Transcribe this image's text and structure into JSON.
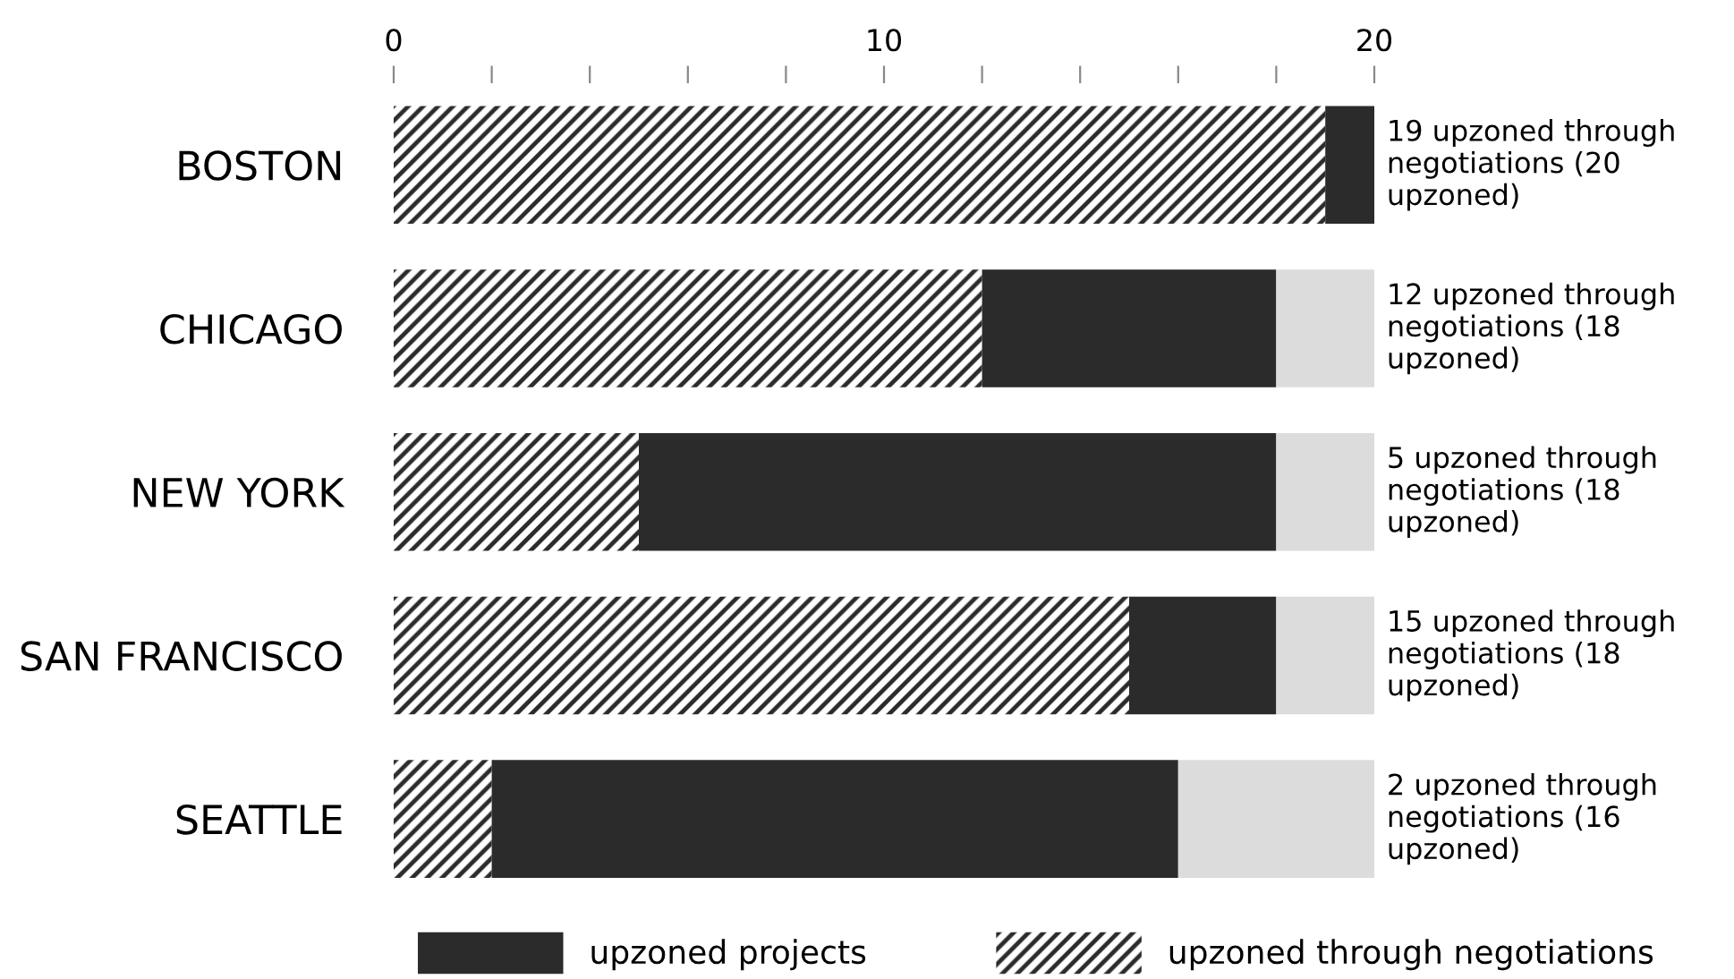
{
  "chart_data": {
    "type": "bar",
    "orientation": "horizontal",
    "stacked": true,
    "categories": [
      "BOSTON",
      "CHICAGO",
      "NEW YORK",
      "SAN FRANCISCO",
      "SEATTLE"
    ],
    "series": [
      {
        "name": "upzoned through negotiations",
        "color": "#2b2b2b",
        "values": [
          19,
          12,
          5,
          15,
          2
        ]
      },
      {
        "name": "upzoned projects",
        "color": "#2b2b2b",
        "values": [
          1,
          6,
          13,
          3,
          14
        ]
      },
      {
        "color": "#dcdcdc",
        "values": [
          0,
          2,
          2,
          2,
          4
        ]
      }
    ],
    "xlim": [
      0,
      20
    ],
    "xticks": [
      0,
      {
        "value": 2,
        "label": null
      },
      {
        "value": 4,
        "label": null
      },
      {
        "value": 6,
        "label": null
      },
      {
        "value": 8,
        "label": null
      },
      10,
      {
        "value": 12,
        "label": null
      },
      {
        "value": 14,
        "label": null
      },
      {
        "value": 16,
        "label": null
      },
      {
        "value": 18,
        "label": null
      },
      20
    ],
    "legend": "bottom",
    "annotations": [
      "19 upzoned through negotiations (20 upzoned)",
      "12 upzoned through negotiations (18 upzoned)",
      "5 upzoned through negotiations (18 upzoned)",
      "15 upzoned through negotiations (18 upzoned)",
      "2 upzoned through negotiations (16 upzoned)"
    ]
  }
}
